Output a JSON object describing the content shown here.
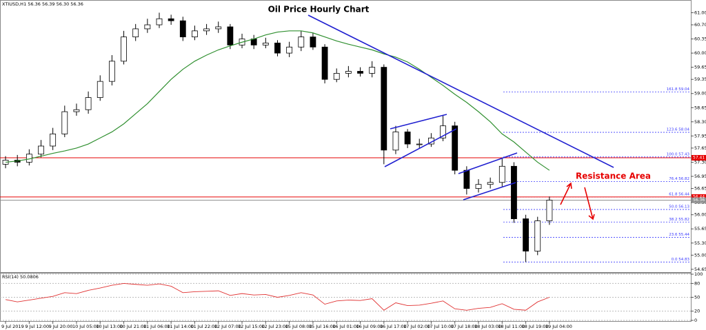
{
  "chart_data": [
    {
      "type": "candlestick",
      "title": "Oil Price Hourly Chart",
      "subtitle": "XTIUSD,H1  56.36 56.39 56.30 56.36",
      "annotation": "Resistance Area",
      "open": [
        57.25,
        57.35,
        57.3,
        57.5,
        57.7,
        58.0,
        58.55,
        58.6,
        58.9,
        59.3,
        59.8,
        60.4,
        60.6,
        60.7,
        60.85,
        60.8,
        60.4,
        60.55,
        60.6,
        60.65,
        60.2,
        60.35,
        60.2,
        60.25,
        60.0,
        60.15,
        60.4,
        60.15,
        59.35,
        59.5,
        59.55,
        59.5,
        59.65,
        57.6,
        58.05,
        57.75,
        57.75,
        57.9,
        58.2,
        57.1,
        56.65,
        56.75,
        56.8,
        57.2,
        55.9,
        55.1,
        55.85
      ],
      "high": [
        57.45,
        57.48,
        57.62,
        57.85,
        58.15,
        58.7,
        58.75,
        59.05,
        59.45,
        59.95,
        60.55,
        60.72,
        60.85,
        61.0,
        60.95,
        60.9,
        60.68,
        60.72,
        60.78,
        60.72,
        60.48,
        60.45,
        60.38,
        60.32,
        60.28,
        60.55,
        60.5,
        60.22,
        59.62,
        59.68,
        59.65,
        59.8,
        59.72,
        58.2,
        58.12,
        57.88,
        58.02,
        58.45,
        58.3,
        57.2,
        56.88,
        56.92,
        57.4,
        57.3,
        56.0,
        55.95,
        56.45
      ],
      "low": [
        57.15,
        57.2,
        57.22,
        57.42,
        57.6,
        57.92,
        58.45,
        58.5,
        58.82,
        59.2,
        59.72,
        60.3,
        60.5,
        60.62,
        60.7,
        60.3,
        60.32,
        60.45,
        60.5,
        60.1,
        60.12,
        60.1,
        60.12,
        59.92,
        59.9,
        60.05,
        60.08,
        59.25,
        59.28,
        59.4,
        59.42,
        59.4,
        57.25,
        57.5,
        57.65,
        57.65,
        57.68,
        57.82,
        57.0,
        56.5,
        56.55,
        56.65,
        56.7,
        55.8,
        54.83,
        55.0,
        55.75
      ],
      "close": [
        57.35,
        57.3,
        57.5,
        57.7,
        58.0,
        58.55,
        58.6,
        58.9,
        59.3,
        59.8,
        60.4,
        60.6,
        60.7,
        60.85,
        60.8,
        60.4,
        60.55,
        60.6,
        60.65,
        60.2,
        60.35,
        60.2,
        60.25,
        60.0,
        60.15,
        60.4,
        60.15,
        59.35,
        59.5,
        59.55,
        59.5,
        59.65,
        57.6,
        58.05,
        57.75,
        57.75,
        57.9,
        58.2,
        57.1,
        56.65,
        56.75,
        56.8,
        57.2,
        55.9,
        55.1,
        55.85,
        56.36
      ],
      "ma": {
        "color": "#2f8f2f",
        "values": [
          57.3,
          57.33,
          57.38,
          57.45,
          57.52,
          57.58,
          57.65,
          57.75,
          57.9,
          58.05,
          58.25,
          58.5,
          58.75,
          59.05,
          59.35,
          59.6,
          59.8,
          59.95,
          60.08,
          60.18,
          60.27,
          60.35,
          60.45,
          60.52,
          60.55,
          60.55,
          60.5,
          60.4,
          60.3,
          60.22,
          60.15,
          60.08,
          59.98,
          59.9,
          59.78,
          59.6,
          59.4,
          59.2,
          58.98,
          58.78,
          58.55,
          58.3,
          58.0,
          57.8,
          57.55,
          57.3,
          57.1
        ]
      },
      "colors": {
        "up": "#ffffff",
        "down": "#000000",
        "outline": "#000000"
      },
      "xlim": [
        -0.47,
        57.96
      ],
      "ylim": [
        54.58,
        61.28
      ],
      "yticks": [
        {
          "value": 61.0,
          "label": "61.00"
        },
        {
          "value": 60.7,
          "label": "60.70"
        },
        60.35,
        {
          "value": 60.0,
          "label": "60.00"
        },
        59.65,
        59.35,
        {
          "value": 59.0,
          "label": "59.00"
        },
        58.65,
        {
          "value": 58.3,
          "label": "58.30"
        },
        57.95,
        57.65,
        {
          "value": 57.3,
          "label": "57.30"
        },
        56.95,
        56.65,
        {
          "value": 56.3,
          "label": "56.30"
        },
        {
          "value": 56.0,
          "label": "56.00"
        },
        55.65,
        {
          "value": 55.3,
          "label": "55.30"
        },
        {
          "value": 55.0,
          "label": "55.00"
        },
        54.65
      ],
      "xticks": [
        {
          "value": 0,
          "label": "9 Jul 2019"
        },
        {
          "value": 2,
          "label": "9 Jul 12:00"
        },
        {
          "value": 4,
          "label": "9 Jul 20:00"
        },
        {
          "value": 6,
          "label": "10 Jul 05:00"
        },
        {
          "value": 8,
          "label": "10 Jul 13:00"
        },
        {
          "value": 10,
          "label": "10 Jul 21:00"
        },
        {
          "value": 12,
          "label": "11 Jul 06:00"
        },
        {
          "value": 14,
          "label": "11 Jul 14:00"
        },
        {
          "value": 16,
          "label": "11 Jul 22:00"
        },
        {
          "value": 18,
          "label": "12 Jul 07:00"
        },
        {
          "value": 20,
          "label": "12 Jul 15:00"
        },
        {
          "value": 22,
          "label": "12 Jul 23:00"
        },
        {
          "value": 24,
          "label": "15 Jul 08:00"
        },
        {
          "value": 26,
          "label": "15 Jul 16:00"
        },
        {
          "value": 28,
          "label": "16 Jul 01:00"
        },
        {
          "value": 30,
          "label": "16 Jul 09:00"
        },
        {
          "value": 32,
          "label": "16 Jul 17:00"
        },
        {
          "value": 34,
          "label": "17 Jul 02:00"
        },
        {
          "value": 36,
          "label": "17 Jul 10:00"
        },
        {
          "value": 38,
          "label": "17 Jul 18:00"
        },
        {
          "value": 40,
          "label": "18 Jul 03:00"
        },
        {
          "value": 42,
          "label": "18 Jul 11:00"
        },
        {
          "value": 44,
          "label": "18 Jul 19:00"
        },
        {
          "value": 46,
          "label": "19 Jul 04:00"
        }
      ],
      "levels": [
        {
          "value": 59.04,
          "label": "161.8 59.04"
        },
        {
          "value": 58.04,
          "label": "123.6 58.04"
        },
        {
          "value": 57.43,
          "label": "100.0 57.43"
        },
        {
          "value": 56.82,
          "label": "76.4 56.82"
        },
        {
          "value": 56.44,
          "label": "61.8 56.44"
        },
        {
          "value": 56.13,
          "label": "50.0 56.13"
        },
        {
          "value": 55.82,
          "label": "38.2 55.82"
        },
        {
          "value": 55.44,
          "label": "23.6 55.44"
        },
        {
          "value": 54.83,
          "label": "0.0 54.83"
        }
      ],
      "level_color": "#3a3aff",
      "lines": [
        {
          "value": 57.41,
          "color": "#e60000"
        },
        {
          "value": 56.44,
          "color": "#e60000"
        },
        {
          "value": 56.36,
          "color": "#8c8c8c"
        }
      ]
    },
    {
      "type": "line",
      "title": "RSI(14) 50.0806",
      "color": "#e03030",
      "values": [
        45,
        40,
        44,
        48,
        52,
        60,
        58,
        65,
        70,
        76,
        80,
        78,
        76,
        79,
        74,
        60,
        62,
        63,
        64,
        54,
        58,
        55,
        56,
        50,
        54,
        60,
        55,
        35,
        42,
        44,
        43,
        47,
        22,
        38,
        32,
        33,
        37,
        42,
        25,
        22,
        26,
        28,
        36,
        24,
        22,
        40,
        50
      ],
      "ylim": [
        0,
        100
      ],
      "yticks": [
        100,
        80,
        50,
        20,
        0
      ]
    }
  ]
}
